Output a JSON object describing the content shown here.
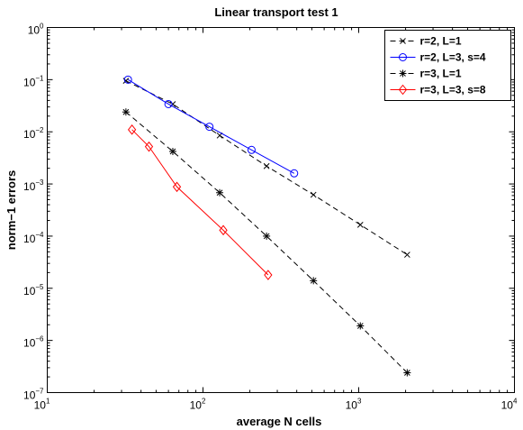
{
  "chart_data": {
    "type": "line",
    "title": "Linear transport test 1",
    "xlabel": "average N cells",
    "ylabel": "norm−1 errors",
    "xscale": "log",
    "yscale": "log",
    "xlim": [
      10,
      10000
    ],
    "ylim": [
      1e-07,
      1
    ],
    "grid": false,
    "legend_position": "top-right",
    "x_ticks": [
      {
        "base": "10",
        "exp": "1"
      },
      {
        "base": "10",
        "exp": "2"
      },
      {
        "base": "10",
        "exp": "3"
      },
      {
        "base": "10",
        "exp": "4"
      }
    ],
    "y_ticks": [
      {
        "base": "10",
        "exp": "0"
      },
      {
        "base": "10",
        "exp": "−1"
      },
      {
        "base": "10",
        "exp": "−2"
      },
      {
        "base": "10",
        "exp": "−3"
      },
      {
        "base": "10",
        "exp": "−4"
      },
      {
        "base": "10",
        "exp": "−5"
      },
      {
        "base": "10",
        "exp": "−6"
      },
      {
        "base": "10",
        "exp": "−7"
      }
    ],
    "series": [
      {
        "name": "r=2, L=1",
        "color": "#000000",
        "dash": true,
        "marker": "x",
        "x": [
          32,
          64,
          128,
          256,
          512,
          1024,
          2048
        ],
        "y": [
          0.095,
          0.034,
          0.0085,
          0.0022,
          0.00062,
          0.000165,
          4.4e-05
        ]
      },
      {
        "name": "r=2, L=3, s=4",
        "color": "#0000ff",
        "dash": false,
        "marker": "circle",
        "x": [
          33,
          60,
          110,
          205,
          385
        ],
        "y": [
          0.1,
          0.034,
          0.0125,
          0.0045,
          0.0016
        ]
      },
      {
        "name": "r=3, L=1",
        "color": "#000000",
        "dash": true,
        "marker": "star",
        "x": [
          32,
          64,
          128,
          256,
          512,
          1024,
          2048
        ],
        "y": [
          0.024,
          0.0042,
          0.00068,
          0.0001,
          1.4e-05,
          1.9e-06,
          2.4e-07
        ]
      },
      {
        "name": "r=3, L=3, s=8",
        "color": "#ff0000",
        "dash": false,
        "marker": "diamond",
        "x": [
          35,
          45,
          68,
          135,
          262
        ],
        "y": [
          0.011,
          0.0052,
          0.00088,
          0.00013,
          1.8e-05
        ]
      }
    ]
  }
}
